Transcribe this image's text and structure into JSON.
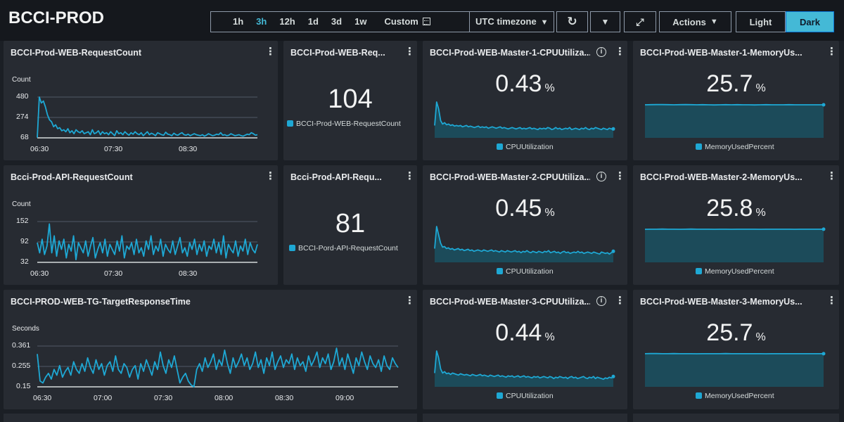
{
  "dashboard": {
    "title": "BCCI-PROD"
  },
  "toolbar": {
    "ranges": [
      "1h",
      "3h",
      "12h",
      "1d",
      "3d",
      "1w"
    ],
    "active_range": "3h",
    "custom_label": "Custom",
    "timezone_label": "UTC timezone",
    "actions_label": "Actions",
    "light_label": "Light",
    "dark_label": "Dark",
    "icons": {
      "refresh": "refresh-icon",
      "fullscreen": "fullscreen-icon",
      "calendar": "calendar-icon"
    }
  },
  "colors": {
    "series": "#1ea8d4",
    "area": "#1c4b5a",
    "accent": "#44b9d6",
    "panel": "#272b32",
    "background": "#1b1f25"
  },
  "widgets": {
    "web_req_line": {
      "title": "BCCI-Prod-WEB-RequestCount"
    },
    "web_req_num": {
      "title": "BCCI-Prod-WEB-Req...",
      "value": "104",
      "legend": "BCCI-Prod-WEB-RequestCount"
    },
    "m1_cpu": {
      "title": "BCCI-Prod-WEB-Master-1-CPUUtiliza...",
      "value": "0.43",
      "unit": "%",
      "legend": "CPUUtilization"
    },
    "m1_mem": {
      "title": "BCCI-Prod-WEB-Master-1-MemoryUs...",
      "value": "25.7",
      "unit": "%",
      "legend": "MemoryUsedPercent"
    },
    "api_req_line": {
      "title": "Bcci-Prod-API-RequestCount"
    },
    "api_req_num": {
      "title": "Bcci-Prod-API-Requ...",
      "value": "81",
      "legend": "BCCI-Pord-API-RequestCount"
    },
    "m2_cpu": {
      "title": "BCCI-Prod-WEB-Master-2-CPUUtiliza...",
      "value": "0.45",
      "unit": "%",
      "legend": "CPUUtilization"
    },
    "m2_mem": {
      "title": "BCCI-Prod-WEB-Master-2-MemoryUs...",
      "value": "25.8",
      "unit": "%",
      "legend": "MemoryUsedPercent"
    },
    "tg_line": {
      "title": "BCCI-PROD-WEB-TG-TargetResponseTime"
    },
    "m3_cpu": {
      "title": "BCCI-Prod-WEB-Master-3-CPUUtiliza...",
      "value": "0.44",
      "unit": "%",
      "legend": "CPUUtilization"
    },
    "m3_mem": {
      "title": "BCCI-Prod-WEB-Master-3-MemoryUs...",
      "value": "25.7",
      "unit": "%",
      "legend": "MemoryUsedPercent"
    }
  },
  "chart_data": [
    {
      "type": "line",
      "widget": "BCCI-Prod-WEB-RequestCount",
      "ylabel": "Count",
      "yticks": [
        "480",
        "274",
        "68"
      ],
      "ylim": [
        68,
        480
      ],
      "xticks": [
        "06:30",
        "07:30",
        "08:30"
      ],
      "series": [
        {
          "values": [
            70,
            480,
            420,
            440,
            380,
            300,
            250,
            230,
            180,
            200,
            160,
            170,
            140,
            150,
            130,
            160,
            120,
            140,
            110,
            150,
            130,
            120,
            140,
            110,
            120,
            130,
            100,
            150,
            110,
            120,
            140,
            100,
            130,
            110,
            120,
            100,
            130,
            110,
            90,
            140,
            110,
            120,
            100,
            130,
            110,
            95,
            120,
            105,
            130,
            110,
            100,
            120,
            90,
            110,
            130,
            100,
            115,
            105,
            90,
            120,
            110,
            100,
            95,
            125,
            105,
            100,
            90,
            115,
            100,
            95,
            110,
            120,
            100,
            95,
            105,
            90,
            100,
            110,
            100,
            95,
            90,
            100,
            85,
            95,
            110,
            100,
            90,
            95,
            105,
            100,
            120,
            95,
            100,
            90,
            95,
            110,
            100,
            90,
            95,
            100,
            90,
            85,
            95,
            105,
            100,
            120,
            110,
            95,
            100
          ]
        }
      ]
    },
    {
      "type": "line",
      "widget": "Bcci-Prod-API-RequestCount",
      "ylabel": "Count",
      "yticks": [
        "152",
        "92",
        "32"
      ],
      "ylim": [
        32,
        152
      ],
      "xticks": [
        "06:30",
        "07:30",
        "08:30"
      ],
      "series": [
        {
          "values": [
            90,
            60,
            100,
            55,
            80,
            145,
            60,
            110,
            50,
            95,
            70,
            100,
            45,
            85,
            65,
            110,
            40,
            90,
            75,
            60,
            95,
            50,
            80,
            105,
            45,
            70,
            90,
            60,
            100,
            50,
            85,
            70,
            55,
            95,
            65,
            110,
            45,
            80,
            70,
            90,
            55,
            100,
            60,
            75,
            50,
            95,
            70,
            110,
            55,
            80,
            65,
            100,
            50,
            85,
            70,
            60,
            95,
            55,
            80,
            105,
            60,
            75,
            50,
            90,
            70,
            100,
            55,
            85,
            65,
            95,
            50,
            80,
            70,
            100,
            60,
            90,
            55,
            110,
            45,
            85,
            70,
            60,
            95,
            50,
            80,
            65,
            100,
            55,
            90,
            70,
            60,
            85
          ]
        }
      ]
    },
    {
      "type": "line",
      "widget": "BCCI-PROD-WEB-TG-TargetResponseTime",
      "ylabel": "Seconds",
      "yticks": [
        "0.361",
        "0.255",
        "0.15"
      ],
      "ylim": [
        0.15,
        0.361
      ],
      "xticks": [
        "06:30",
        "07:00",
        "07:30",
        "08:00",
        "08:30",
        "09:00"
      ],
      "series": [
        {
          "values": [
            0.32,
            0.18,
            0.17,
            0.2,
            0.22,
            0.19,
            0.24,
            0.21,
            0.26,
            0.2,
            0.23,
            0.25,
            0.21,
            0.28,
            0.24,
            0.22,
            0.27,
            0.23,
            0.3,
            0.25,
            0.22,
            0.29,
            0.24,
            0.27,
            0.21,
            0.26,
            0.28,
            0.23,
            0.31,
            0.24,
            0.22,
            0.27,
            0.25,
            0.2,
            0.24,
            0.26,
            0.19,
            0.27,
            0.23,
            0.29,
            0.25,
            0.21,
            0.28,
            0.24,
            0.33,
            0.26,
            0.22,
            0.29,
            0.25,
            0.31,
            0.24,
            0.17,
            0.2,
            0.22,
            0.18,
            0.16,
            0.15,
            0.24,
            0.27,
            0.23,
            0.3,
            0.25,
            0.28,
            0.32,
            0.24,
            0.29,
            0.26,
            0.34,
            0.27,
            0.22,
            0.3,
            0.25,
            0.28,
            0.32,
            0.26,
            0.3,
            0.24,
            0.27,
            0.33,
            0.25,
            0.29,
            0.22,
            0.3,
            0.26,
            0.33,
            0.24,
            0.28,
            0.31,
            0.25,
            0.29,
            0.27,
            0.32,
            0.24,
            0.3,
            0.26,
            0.28,
            0.23,
            0.31,
            0.26,
            0.29,
            0.33,
            0.25,
            0.3,
            0.27,
            0.32,
            0.24,
            0.28,
            0.35,
            0.26,
            0.3,
            0.24,
            0.32,
            0.27,
            0.22,
            0.3,
            0.26,
            0.33,
            0.28,
            0.24,
            0.31,
            0.27,
            0.25,
            0.29,
            0.23,
            0.31,
            0.26,
            0.24,
            0.3,
            0.27,
            0.25
          ]
        }
      ]
    },
    {
      "type": "area",
      "widget": "BCCI-Prod-WEB-Master-1-CPUUtilization",
      "series": [
        {
          "values": [
            0.48,
            0.82,
            0.72,
            0.55,
            0.5,
            0.52,
            0.49,
            0.5,
            0.48,
            0.49,
            0.47,
            0.48,
            0.47,
            0.48,
            0.46,
            0.47,
            0.48,
            0.46,
            0.47,
            0.46,
            0.45,
            0.46,
            0.47,
            0.45,
            0.46,
            0.45,
            0.46,
            0.44,
            0.45,
            0.46,
            0.45,
            0.44,
            0.45,
            0.46,
            0.44,
            0.45,
            0.44,
            0.43,
            0.44,
            0.45,
            0.44,
            0.43,
            0.44,
            0.45,
            0.43,
            0.44,
            0.43,
            0.44,
            0.45,
            0.43,
            0.44,
            0.43,
            0.42,
            0.44,
            0.43,
            0.44,
            0.43,
            0.45,
            0.44,
            0.42,
            0.43,
            0.45,
            0.43,
            0.44,
            0.42,
            0.43,
            0.44,
            0.43,
            0.45,
            0.42,
            0.43,
            0.44,
            0.43,
            0.42,
            0.44,
            0.43,
            0.45,
            0.43,
            0.42,
            0.44,
            0.43,
            0.45,
            0.44,
            0.43,
            0.42,
            0.44,
            0.43,
            0.42,
            0.44,
            0.43,
            0.43
          ]
        }
      ]
    },
    {
      "type": "area",
      "widget": "BCCI-Prod-WEB-Master-1-MemoryUsedPercent",
      "series": [
        {
          "values": [
            25.7,
            25.71,
            25.72,
            25.72,
            25.71,
            25.7,
            25.71,
            25.72,
            25.71,
            25.7,
            25.71,
            25.7,
            25.69,
            25.7,
            25.71,
            25.7,
            25.71,
            25.7,
            25.7,
            25.69,
            25.7,
            25.71,
            25.7,
            25.7,
            25.7,
            25.71,
            25.7,
            25.7,
            25.7,
            25.7,
            25.7,
            25.7
          ]
        }
      ]
    },
    {
      "type": "area",
      "widget": "BCCI-Prod-WEB-Master-2-CPUUtilization",
      "series": [
        {
          "values": [
            0.5,
            0.82,
            0.7,
            0.58,
            0.52,
            0.53,
            0.5,
            0.51,
            0.49,
            0.5,
            0.48,
            0.49,
            0.5,
            0.48,
            0.49,
            0.47,
            0.48,
            0.49,
            0.47,
            0.48,
            0.46,
            0.47,
            0.48,
            0.47,
            0.46,
            0.48,
            0.47,
            0.46,
            0.47,
            0.48,
            0.46,
            0.47,
            0.46,
            0.45,
            0.47,
            0.46,
            0.45,
            0.47,
            0.46,
            0.45,
            0.46,
            0.47,
            0.45,
            0.46,
            0.44,
            0.46,
            0.45,
            0.47,
            0.45,
            0.44,
            0.46,
            0.45,
            0.44,
            0.46,
            0.45,
            0.44,
            0.46,
            0.45,
            0.47,
            0.44,
            0.45,
            0.46,
            0.44,
            0.45,
            0.43,
            0.45,
            0.46,
            0.44,
            0.45,
            0.43,
            0.44,
            0.45,
            0.44,
            0.46,
            0.44,
            0.45,
            0.43,
            0.44,
            0.45,
            0.44,
            0.43,
            0.45,
            0.44,
            0.43,
            0.42,
            0.45,
            0.44,
            0.43,
            0.44,
            0.42,
            0.44,
            0.46
          ]
        }
      ]
    },
    {
      "type": "area",
      "widget": "BCCI-Prod-WEB-Master-2-MemoryUsedPercent",
      "series": [
        {
          "values": [
            25.79,
            25.8,
            25.8,
            25.81,
            25.8,
            25.8,
            25.79,
            25.8,
            25.81,
            25.8,
            25.8,
            25.8,
            25.79,
            25.8,
            25.8,
            25.79,
            25.8,
            25.8,
            25.8,
            25.8,
            25.79,
            25.8,
            25.8,
            25.8,
            25.8,
            25.8,
            25.79,
            25.8,
            25.8,
            25.8,
            25.8,
            25.8
          ]
        }
      ]
    },
    {
      "type": "area",
      "widget": "BCCI-Prod-WEB-Master-3-CPUUtilization",
      "series": [
        {
          "values": [
            0.5,
            0.82,
            0.72,
            0.56,
            0.5,
            0.52,
            0.49,
            0.5,
            0.48,
            0.5,
            0.49,
            0.48,
            0.47,
            0.49,
            0.48,
            0.47,
            0.48,
            0.47,
            0.46,
            0.48,
            0.47,
            0.46,
            0.47,
            0.48,
            0.46,
            0.47,
            0.46,
            0.45,
            0.47,
            0.46,
            0.45,
            0.46,
            0.47,
            0.45,
            0.46,
            0.45,
            0.44,
            0.46,
            0.45,
            0.46,
            0.44,
            0.45,
            0.46,
            0.44,
            0.45,
            0.46,
            0.44,
            0.45,
            0.44,
            0.43,
            0.45,
            0.44,
            0.45,
            0.43,
            0.44,
            0.45,
            0.44,
            0.43,
            0.45,
            0.44,
            0.42,
            0.44,
            0.43,
            0.45,
            0.44,
            0.43,
            0.44,
            0.42,
            0.44,
            0.45,
            0.43,
            0.44,
            0.42,
            0.43,
            0.44,
            0.45,
            0.43,
            0.42,
            0.44,
            0.43,
            0.45,
            0.42,
            0.44,
            0.43,
            0.42,
            0.41,
            0.43,
            0.42,
            0.44,
            0.43,
            0.45
          ]
        }
      ]
    },
    {
      "type": "area",
      "widget": "BCCI-Prod-WEB-Master-3-MemoryUsedPercent",
      "series": [
        {
          "values": [
            25.7,
            25.71,
            25.71,
            25.7,
            25.7,
            25.71,
            25.7,
            25.7,
            25.7,
            25.69,
            25.7,
            25.7,
            25.7,
            25.7,
            25.71,
            25.7,
            25.7,
            25.7,
            25.7,
            25.7,
            25.7,
            25.69,
            25.7,
            25.7,
            25.7,
            25.7,
            25.7,
            25.7,
            25.7,
            25.7,
            25.7,
            25.7
          ]
        }
      ]
    }
  ]
}
